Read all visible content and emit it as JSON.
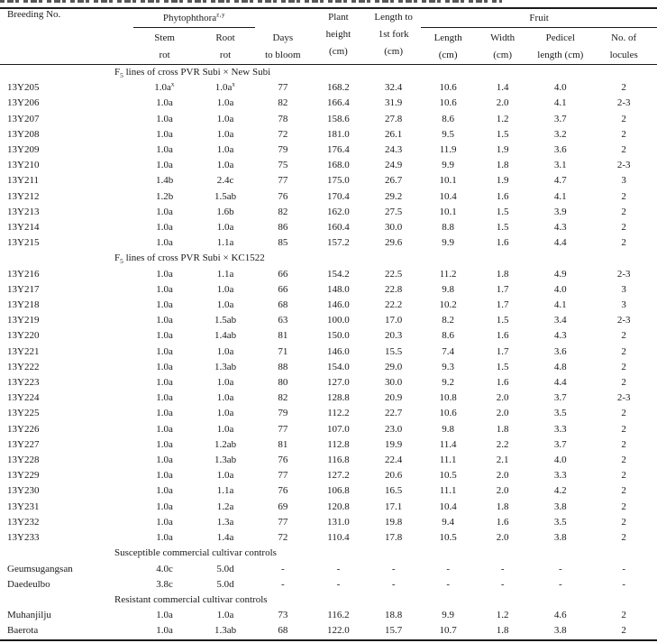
{
  "colors": {
    "text": "#1a1a1a",
    "rule": "#1a1a1a",
    "background": "#ffffff"
  },
  "table": {
    "header": {
      "breeding_no": "Breeding No.",
      "phytophthora": "Phytophthora",
      "phytophthora_sup": "z,y",
      "stem_rot": [
        "Stem",
        "rot"
      ],
      "root_rot": [
        "Root",
        "rot"
      ],
      "days_to_bloom": [
        "Days",
        "to bloom"
      ],
      "plant_height": [
        "Plant",
        "height",
        "(cm)"
      ],
      "length_to_first_fork": [
        "Length to",
        "1st fork",
        "(cm)"
      ],
      "fruit": "Fruit",
      "fruit_length": [
        "Length",
        "(cm)"
      ],
      "fruit_width": [
        "Width",
        "(cm)"
      ],
      "pedicel_length": [
        "Pedicel",
        "length (cm)"
      ],
      "no_of_locules": [
        "No. of",
        "locules"
      ]
    },
    "sections": [
      {
        "title": {
          "pre": "F",
          "sub": "5",
          "post": " lines of cross PVR Subi × New Subi"
        },
        "rows": [
          [
            "13Y205",
            "1.0a^x",
            "1.0a^x",
            "77",
            "168.2",
            "32.4",
            "10.6",
            "1.4",
            "4.0",
            "2"
          ],
          [
            "13Y206",
            "1.0a",
            "1.0a",
            "82",
            "166.4",
            "31.9",
            "10.6",
            "2.0",
            "4.1",
            "2-3"
          ],
          [
            "13Y207",
            "1.0a",
            "1.0a",
            "78",
            "158.6",
            "27.8",
            "8.6",
            "1.2",
            "3.7",
            "2"
          ],
          [
            "13Y208",
            "1.0a",
            "1.0a",
            "72",
            "181.0",
            "26.1",
            "9.5",
            "1.5",
            "3.2",
            "2"
          ],
          [
            "13Y209",
            "1.0a",
            "1.0a",
            "79",
            "176.4",
            "24.3",
            "11.9",
            "1.9",
            "3.6",
            "2"
          ],
          [
            "13Y210",
            "1.0a",
            "1.0a",
            "75",
            "168.0",
            "24.9",
            "9.9",
            "1.8",
            "3.1",
            "2-3"
          ],
          [
            "13Y211",
            "1.4b",
            "2.4c",
            "77",
            "175.0",
            "26.7",
            "10.1",
            "1.9",
            "4.7",
            "3"
          ],
          [
            "13Y212",
            "1.2b",
            "1.5ab",
            "76",
            "170.4",
            "29.2",
            "10.4",
            "1.6",
            "4.1",
            "2"
          ],
          [
            "13Y213",
            "1.0a",
            "1.6b",
            "82",
            "162.0",
            "27.5",
            "10.1",
            "1.5",
            "3.9",
            "2"
          ],
          [
            "13Y214",
            "1.0a",
            "1.0a",
            "86",
            "160.4",
            "30.0",
            "8.8",
            "1.5",
            "4.3",
            "2"
          ],
          [
            "13Y215",
            "1.0a",
            "1.1a",
            "85",
            "157.2",
            "29.6",
            "9.9",
            "1.6",
            "4.4",
            "2"
          ]
        ]
      },
      {
        "title": {
          "pre": "F",
          "sub": "5",
          "post": " lines of cross PVR Subi × KC1522"
        },
        "rows": [
          [
            "13Y216",
            "1.0a",
            "1.1a",
            "66",
            "154.2",
            "22.5",
            "11.2",
            "1.8",
            "4.9",
            "2-3"
          ],
          [
            "13Y217",
            "1.0a",
            "1.0a",
            "66",
            "148.0",
            "22.8",
            "9.8",
            "1.7",
            "4.0",
            "3"
          ],
          [
            "13Y218",
            "1.0a",
            "1.0a",
            "68",
            "146.0",
            "22.2",
            "10.2",
            "1.7",
            "4.1",
            "3"
          ],
          [
            "13Y219",
            "1.0a",
            "1.5ab",
            "63",
            "100.0",
            "17.0",
            "8.2",
            "1.5",
            "3.4",
            "2-3"
          ],
          [
            "13Y220",
            "1.0a",
            "1.4ab",
            "81",
            "150.0",
            "20.3",
            "8.6",
            "1.6",
            "4.3",
            "2"
          ],
          [
            "13Y221",
            "1.0a",
            "1.0a",
            "71",
            "146.0",
            "15.5",
            "7.4",
            "1.7",
            "3.6",
            "2"
          ],
          [
            "13Y222",
            "1.0a",
            "1.3ab",
            "88",
            "154.0",
            "29.0",
            "9.3",
            "1.5",
            "4.8",
            "2"
          ],
          [
            "13Y223",
            "1.0a",
            "1.0a",
            "80",
            "127.0",
            "30.0",
            "9.2",
            "1.6",
            "4.4",
            "2"
          ],
          [
            "13Y224",
            "1.0a",
            "1.0a",
            "82",
            "128.8",
            "20.9",
            "10.8",
            "2.0",
            "3.7",
            "2-3"
          ],
          [
            "13Y225",
            "1.0a",
            "1.0a",
            "79",
            "112.2",
            "22.7",
            "10.6",
            "2.0",
            "3.5",
            "2"
          ],
          [
            "13Y226",
            "1.0a",
            "1.0a",
            "77",
            "107.0",
            "23.0",
            "9.8",
            "1.8",
            "3.3",
            "2"
          ],
          [
            "13Y227",
            "1.0a",
            "1.2ab",
            "81",
            "112.8",
            "19.9",
            "11.4",
            "2.2",
            "3.7",
            "2"
          ],
          [
            "13Y228",
            "1.0a",
            "1.3ab",
            "76",
            "116.8",
            "22.4",
            "11.1",
            "2.1",
            "4.0",
            "2"
          ],
          [
            "13Y229",
            "1.0a",
            "1.0a",
            "77",
            "127.2",
            "20.6",
            "10.5",
            "2.0",
            "3.3",
            "2"
          ],
          [
            "13Y230",
            "1.0a",
            "1.1a",
            "76",
            "106.8",
            "16.5",
            "11.1",
            "2.0",
            "4.2",
            "2"
          ],
          [
            "13Y231",
            "1.0a",
            "1.2a",
            "69",
            "120.8",
            "17.1",
            "10.4",
            "1.8",
            "3.8",
            "2"
          ],
          [
            "13Y232",
            "1.0a",
            "1.3a",
            "77",
            "131.0",
            "19.8",
            "9.4",
            "1.6",
            "3.5",
            "2"
          ],
          [
            "13Y233",
            "1.0a",
            "1.4a",
            "72",
            "110.4",
            "17.8",
            "10.5",
            "2.0",
            "3.8",
            "2"
          ]
        ]
      },
      {
        "title": {
          "text": "Susceptible commercial cultivar controls"
        },
        "rows": [
          [
            "Geumsugangsan",
            "4.0c",
            "5.0d",
            "-",
            "-",
            "-",
            "-",
            "-",
            "-",
            "-"
          ],
          [
            "Daedeulbo",
            "3.8c",
            "5.0d",
            "-",
            "-",
            "-",
            "-",
            "-",
            "-",
            "-"
          ]
        ]
      },
      {
        "title": {
          "text": "Resistant commercial cultivar controls"
        },
        "rows": [
          [
            "Muhanjilju",
            "1.0a",
            "1.0a",
            "73",
            "116.2",
            "18.8",
            "9.9",
            "1.2",
            "4.6",
            "2"
          ],
          [
            "Baerota",
            "1.0a",
            "1.3ab",
            "68",
            "122.0",
            "15.7",
            "10.7",
            "1.8",
            "3.8",
            "2"
          ]
        ]
      }
    ]
  }
}
